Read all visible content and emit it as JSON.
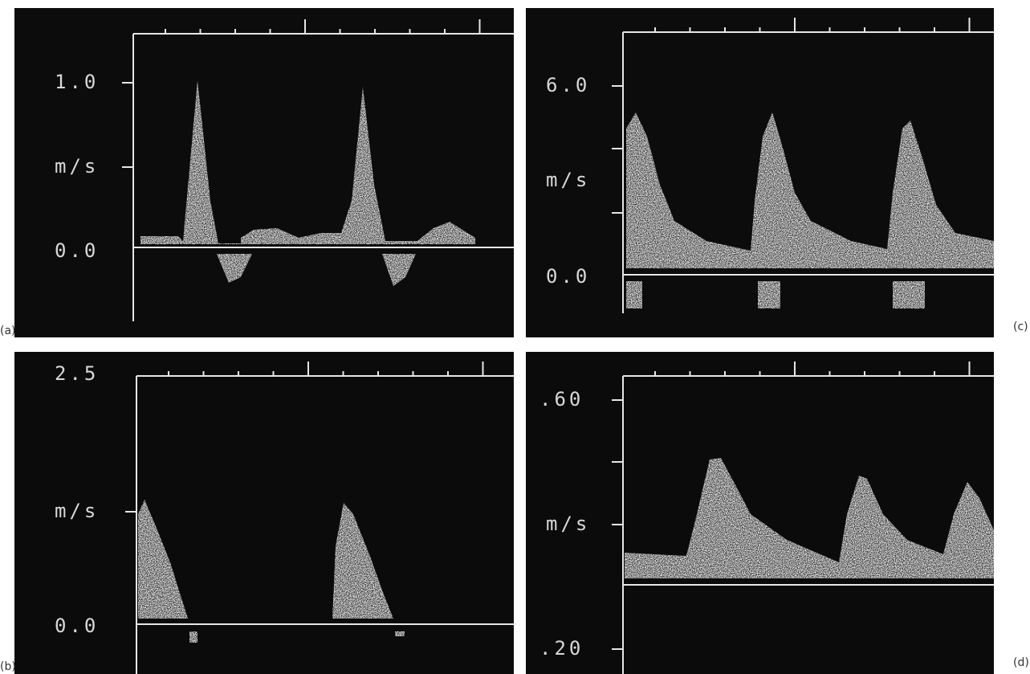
{
  "panels": [
    {
      "label": "(a)",
      "y_axis": {
        "top": "1.0",
        "unit": "m/s",
        "bottom": "0.0"
      }
    },
    {
      "label": "(b)",
      "y_axis": {
        "top": "2.5",
        "unit": "m/s",
        "bottom": "0.0"
      }
    },
    {
      "label": "(c)",
      "y_axis": {
        "top": "6.0",
        "unit": "m/s",
        "bottom": "0.0"
      }
    },
    {
      "label": "(d)",
      "y_axis": {
        "top": ".60",
        "unit": "m/s",
        "bottom": ".20"
      }
    }
  ]
}
